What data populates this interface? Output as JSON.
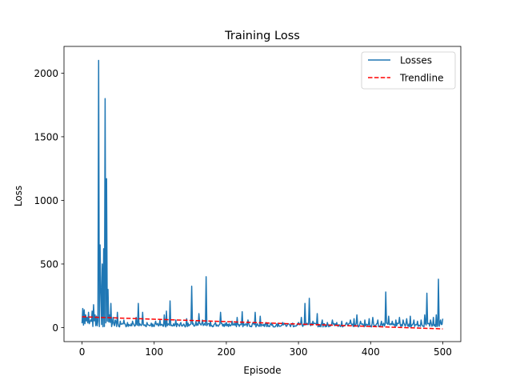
{
  "chart_data": {
    "type": "line",
    "title": "Training Loss",
    "xlabel": "Episode",
    "ylabel": "Loss",
    "xlim": [
      -25,
      525
    ],
    "ylim": [
      -110,
      2210
    ],
    "xticks": [
      0,
      100,
      200,
      300,
      400,
      500
    ],
    "yticks": [
      0,
      500,
      1000,
      1500,
      2000
    ],
    "grid": false,
    "legend_position": "top-right",
    "series": [
      {
        "name": "Losses",
        "color": "#1f77b4",
        "style": "solid",
        "spikes": [
          [
            1,
            150
          ],
          [
            3,
            140
          ],
          [
            5,
            100
          ],
          [
            7,
            80
          ],
          [
            9,
            120
          ],
          [
            12,
            60
          ],
          [
            14,
            130
          ],
          [
            16,
            180
          ],
          [
            18,
            100
          ],
          [
            20,
            90
          ],
          [
            23,
            2100
          ],
          [
            25,
            650
          ],
          [
            26,
            300
          ],
          [
            28,
            500
          ],
          [
            30,
            620
          ],
          [
            32,
            1800
          ],
          [
            34,
            1170
          ],
          [
            36,
            300
          ],
          [
            38,
            100
          ],
          [
            40,
            190
          ],
          [
            43,
            80
          ],
          [
            46,
            60
          ],
          [
            49,
            120
          ],
          [
            53,
            50
          ],
          [
            58,
            60
          ],
          [
            63,
            40
          ],
          [
            70,
            50
          ],
          [
            75,
            80
          ],
          [
            78,
            190
          ],
          [
            84,
            120
          ],
          [
            90,
            40
          ],
          [
            96,
            35
          ],
          [
            102,
            50
          ],
          [
            108,
            60
          ],
          [
            114,
            100
          ],
          [
            117,
            130
          ],
          [
            122,
            210
          ],
          [
            130,
            60
          ],
          [
            137,
            40
          ],
          [
            145,
            70
          ],
          [
            152,
            325
          ],
          [
            158,
            50
          ],
          [
            162,
            110
          ],
          [
            167,
            60
          ],
          [
            172,
            400
          ],
          [
            178,
            50
          ],
          [
            185,
            40
          ],
          [
            192,
            120
          ],
          [
            200,
            40
          ],
          [
            208,
            50
          ],
          [
            215,
            80
          ],
          [
            222,
            125
          ],
          [
            230,
            60
          ],
          [
            237,
            40
          ],
          [
            240,
            120
          ],
          [
            247,
            90
          ],
          [
            255,
            40
          ],
          [
            262,
            35
          ],
          [
            270,
            30
          ],
          [
            278,
            40
          ],
          [
            285,
            30
          ],
          [
            292,
            35
          ],
          [
            300,
            40
          ],
          [
            304,
            80
          ],
          [
            309,
            190
          ],
          [
            315,
            230
          ],
          [
            320,
            50
          ],
          [
            326,
            110
          ],
          [
            333,
            60
          ],
          [
            340,
            40
          ],
          [
            347,
            60
          ],
          [
            353,
            40
          ],
          [
            360,
            50
          ],
          [
            367,
            40
          ],
          [
            372,
            60
          ],
          [
            377,
            70
          ],
          [
            381,
            100
          ],
          [
            386,
            50
          ],
          [
            392,
            60
          ],
          [
            398,
            70
          ],
          [
            403,
            80
          ],
          [
            410,
            60
          ],
          [
            415,
            50
          ],
          [
            421,
            280
          ],
          [
            425,
            90
          ],
          [
            430,
            50
          ],
          [
            435,
            60
          ],
          [
            440,
            80
          ],
          [
            445,
            60
          ],
          [
            450,
            70
          ],
          [
            455,
            90
          ],
          [
            460,
            60
          ],
          [
            465,
            50
          ],
          [
            470,
            60
          ],
          [
            475,
            100
          ],
          [
            478,
            270
          ],
          [
            483,
            60
          ],
          [
            487,
            80
          ],
          [
            491,
            100
          ],
          [
            494,
            380
          ],
          [
            497,
            60
          ],
          [
            500,
            70
          ]
        ],
        "baseline": "noise 0-40 between spikes"
      },
      {
        "name": "Trendline",
        "color": "#ff0000",
        "style": "dashed",
        "x": [
          0,
          500
        ],
        "values": [
          85,
          -10
        ]
      }
    ]
  }
}
